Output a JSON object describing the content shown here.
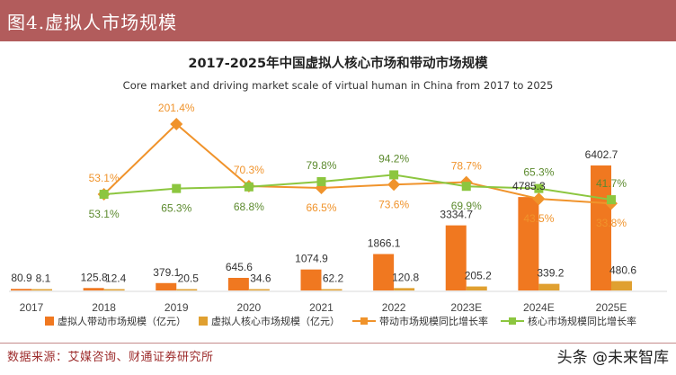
{
  "header": {
    "title": "图4.虚拟人市场规模"
  },
  "source": "数据来源：艾媒咨询、财通证券研究所",
  "watermark": "头条 @未来智库",
  "colors": {
    "header_bg": "#b25c5c",
    "driving_bar": "#f07820",
    "core_bar": "#e0a030",
    "driving_line": "#f0932b",
    "core_line": "#8cc63f"
  },
  "chart_data": {
    "type": "bar",
    "title": "2017-2025年中国虚拟人核心市场和带动市场规模",
    "subtitle": "Core market and driving market scale of virtual human in China from 2017 to 2025",
    "categories": [
      "2017",
      "2018",
      "2019",
      "2020",
      "2021",
      "2022",
      "2023E",
      "2024E",
      "2025E"
    ],
    "series": [
      {
        "name": "虚拟人带动市场规模（亿元）",
        "kind": "bar",
        "values": [
          80.9,
          125.8,
          379.1,
          645.6,
          1074.9,
          1866.1,
          3334.7,
          4785.3,
          6402.7
        ],
        "labels": [
          "80.9",
          "125.8",
          "379.1",
          "645.6",
          "1074.9",
          "1866.1",
          "3334.7",
          "4785.3",
          "6402.7"
        ]
      },
      {
        "name": "虚拟人核心市场规模（亿元）",
        "kind": "bar",
        "values": [
          8.1,
          12.4,
          20.5,
          34.6,
          62.2,
          120.8,
          205.2,
          339.2,
          480.6
        ],
        "labels": [
          "8.1",
          "12.4",
          "20.5",
          "34.6",
          "62.2",
          "120.8",
          "205.2",
          "339.2",
          "480.6"
        ]
      },
      {
        "name": "带动市场规模同比增长率",
        "kind": "line",
        "values": [
          null,
          53.1,
          201.4,
          70.3,
          66.5,
          73.6,
          78.7,
          43.5,
          33.8
        ],
        "labels": [
          "",
          "53.1%",
          "201.4%",
          "70.3%",
          "66.5%",
          "73.6%",
          "78.7%",
          "43.5%",
          "33.8%"
        ]
      },
      {
        "name": "核心市场规模同比增长率",
        "kind": "line",
        "values": [
          null,
          53.1,
          65.3,
          68.8,
          79.8,
          94.2,
          69.9,
          65.3,
          41.7
        ],
        "labels": [
          "",
          "53.1%",
          "65.3%",
          "68.8%",
          "79.8%",
          "94.2%",
          "69.9%",
          "65.3%",
          "41.7%"
        ]
      }
    ],
    "bar_axis": {
      "min": 0,
      "max": 6402.7,
      "visible": false
    },
    "line_axis": {
      "min": 0,
      "max": 201.4,
      "visible": false
    },
    "legend": "bottom",
    "grid": false
  }
}
